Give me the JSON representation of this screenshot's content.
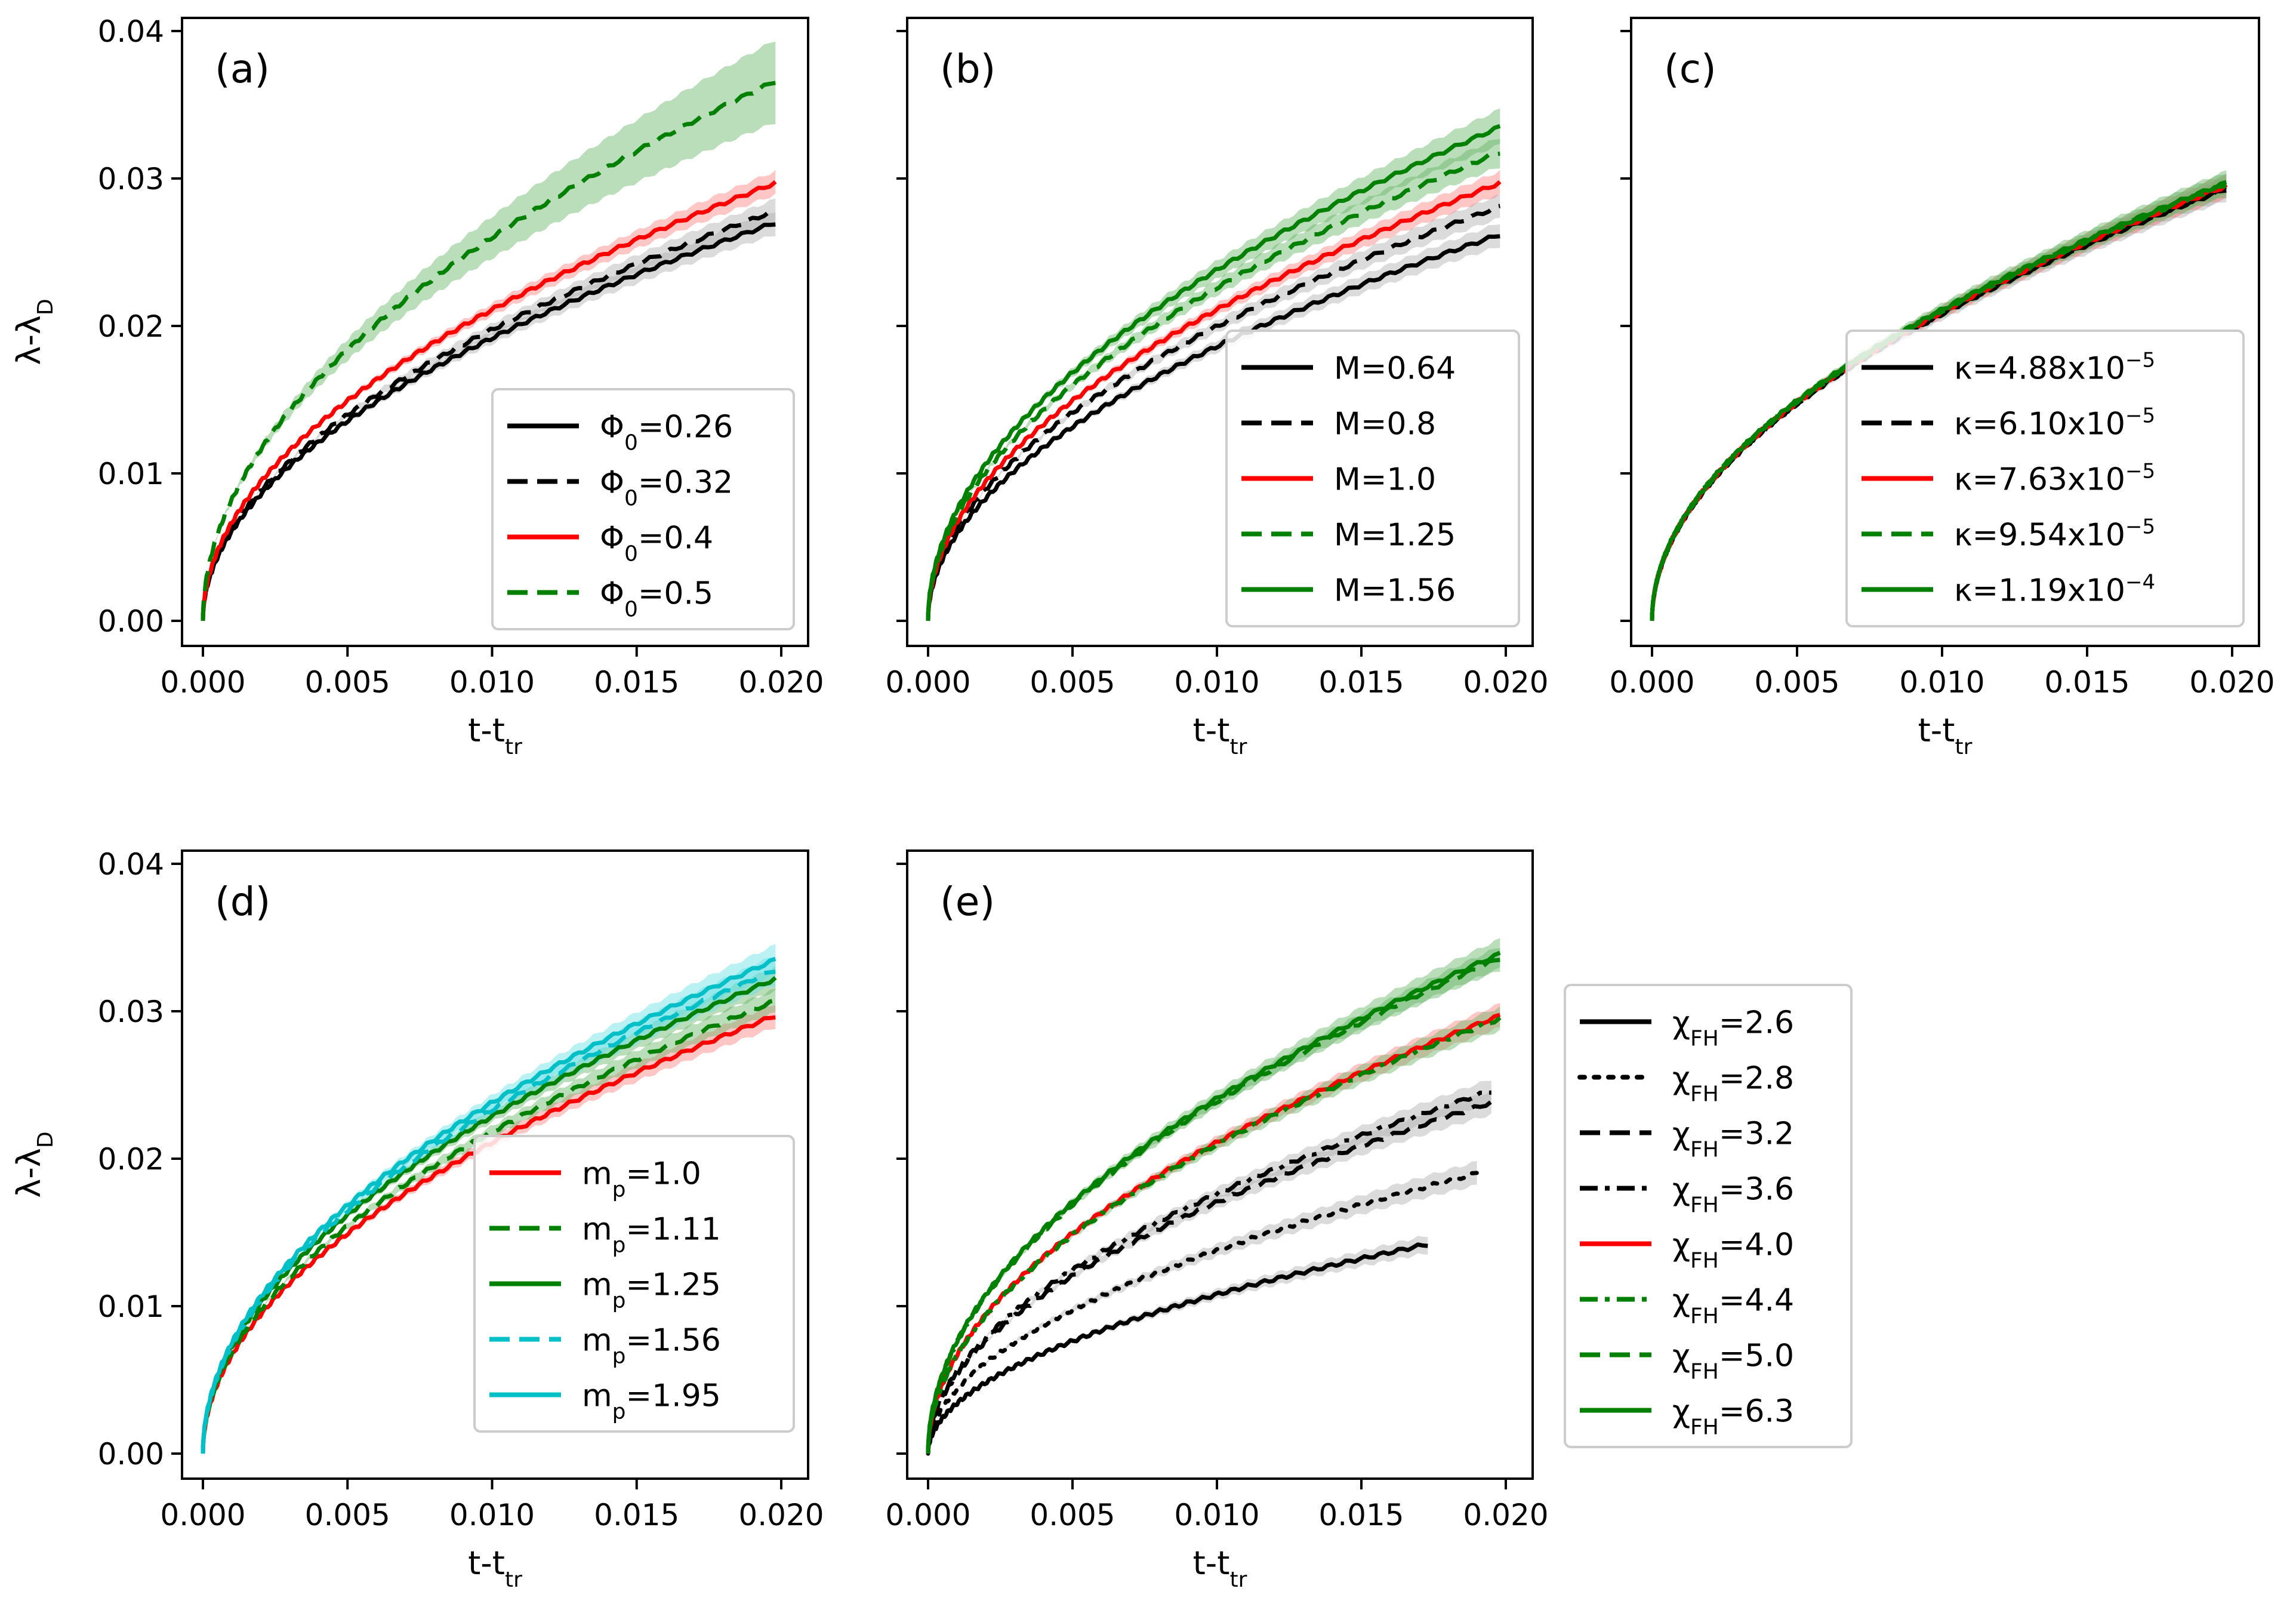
{
  "colors": {
    "black": "#000000",
    "red": "#ff0000",
    "green": "#008000",
    "cyan": "#00bfc6",
    "band_black": "#b0b0b0",
    "band_red": "#ff8080",
    "band_green": "#66b366",
    "band_cyan": "#66e0e4"
  },
  "chart_data": [
    {
      "type": "line",
      "panel": "(a)",
      "xlabel": {
        "main": "t-t",
        "sub": "tr"
      },
      "ylabel": {
        "main": "λ-λ",
        "sub": "D"
      },
      "xlim": [
        0,
        0.02
      ],
      "ylim": [
        0,
        0.04
      ],
      "xticks": [
        "0.000",
        "0.005",
        "0.010",
        "0.015",
        "0.020"
      ],
      "yticks": [
        "0.00",
        "0.01",
        "0.02",
        "0.03",
        "0.04"
      ],
      "legend_position": "lower-right",
      "series": [
        {
          "legend": {
            "main": "Φ",
            "sub": "0",
            "tail": "=0.26"
          },
          "color": "black",
          "style": "solid",
          "x_end": 0.0198,
          "final": 0.027,
          "k": 0.006,
          "band": 0.0008
        },
        {
          "legend": {
            "main": "Φ",
            "sub": "0",
            "tail": "=0.32"
          },
          "color": "black",
          "style": "dashed",
          "x_end": 0.0198,
          "final": 0.0278,
          "k": 0.0045,
          "band": 0.0008
        },
        {
          "legend": {
            "main": "Φ",
            "sub": "0",
            "tail": "=0.4"
          },
          "color": "red",
          "style": "solid",
          "x_end": 0.0198,
          "final": 0.0297,
          "k": 0.0032,
          "band": 0.0008
        },
        {
          "legend": {
            "main": "Φ",
            "sub": "0",
            "tail": "=0.5"
          },
          "color": "green",
          "style": "dashed",
          "x_end": 0.0198,
          "final": 0.0366,
          "k": 0.0032,
          "band": 0.0028
        }
      ]
    },
    {
      "type": "line",
      "panel": "(b)",
      "xlabel": {
        "main": "t-t",
        "sub": "tr"
      },
      "xlim": [
        0,
        0.02
      ],
      "ylim": [
        0,
        0.04
      ],
      "xticks": [
        "0.000",
        "0.005",
        "0.010",
        "0.015",
        "0.020"
      ],
      "legend_position": "lower-right",
      "series": [
        {
          "legend": {
            "main": "M=0.64"
          },
          "color": "black",
          "style": "solid",
          "x_end": 0.0198,
          "final": 0.0262,
          "k": 0.0035,
          "band": 0.0008
        },
        {
          "legend": {
            "main": "M=0.8"
          },
          "color": "black",
          "style": "dashed",
          "x_end": 0.0198,
          "final": 0.0281,
          "k": 0.0035,
          "band": 0.0008
        },
        {
          "legend": {
            "main": "M=1.0"
          },
          "color": "red",
          "style": "solid",
          "x_end": 0.0198,
          "final": 0.0297,
          "k": 0.0032,
          "band": 0.0008
        },
        {
          "legend": {
            "main": "M=1.25"
          },
          "color": "green",
          "style": "dashed",
          "x_end": 0.0198,
          "final": 0.0318,
          "k": 0.003,
          "band": 0.001
        },
        {
          "legend": {
            "main": "M=1.56"
          },
          "color": "green",
          "style": "solid",
          "x_end": 0.0198,
          "final": 0.0335,
          "k": 0.0028,
          "band": 0.0012
        }
      ]
    },
    {
      "type": "line",
      "panel": "(c)",
      "xlabel": {
        "main": "t-t",
        "sub": "tr"
      },
      "xlim": [
        0,
        0.02
      ],
      "ylim": [
        0,
        0.04
      ],
      "xticks": [
        "0.000",
        "0.005",
        "0.010",
        "0.015",
        "0.020"
      ],
      "legend_position": "lower-right",
      "series": [
        {
          "legend": {
            "main": "κ=4.88x10",
            "sup": "−5"
          },
          "color": "black",
          "style": "solid",
          "x_end": 0.0198,
          "final": 0.0293,
          "k": 0.003,
          "band": 0.0008
        },
        {
          "legend": {
            "main": "κ=6.10x10",
            "sup": "−5"
          },
          "color": "black",
          "style": "dashed",
          "x_end": 0.0198,
          "final": 0.0294,
          "k": 0.003,
          "band": 0.0008
        },
        {
          "legend": {
            "main": "κ=7.63x10",
            "sup": "−5"
          },
          "color": "red",
          "style": "solid",
          "x_end": 0.0198,
          "final": 0.0295,
          "k": 0.003,
          "band": 0.0008
        },
        {
          "legend": {
            "main": "κ=9.54x10",
            "sup": "−5"
          },
          "color": "green",
          "style": "dashed",
          "x_end": 0.0198,
          "final": 0.0296,
          "k": 0.003,
          "band": 0.0008
        },
        {
          "legend": {
            "main": "κ=1.19x10",
            "sup": "−4"
          },
          "color": "green",
          "style": "solid",
          "x_end": 0.0198,
          "final": 0.0297,
          "k": 0.003,
          "band": 0.0008
        }
      ]
    },
    {
      "type": "line",
      "panel": "(d)",
      "xlabel": {
        "main": "t-t",
        "sub": "tr"
      },
      "ylabel": {
        "main": "λ-λ",
        "sub": "D"
      },
      "xlim": [
        0,
        0.02
      ],
      "ylim": [
        0,
        0.04
      ],
      "xticks": [
        "0.000",
        "0.005",
        "0.010",
        "0.015",
        "0.020"
      ],
      "yticks": [
        "0.00",
        "0.01",
        "0.02",
        "0.03",
        "0.04"
      ],
      "legend_position": "lower-right",
      "series": [
        {
          "legend": {
            "main": "m",
            "sub": "p",
            "tail": "=1.0"
          },
          "color": "red",
          "style": "solid",
          "x_end": 0.0198,
          "final": 0.0297,
          "k": 0.0032,
          "band": 0.0008
        },
        {
          "legend": {
            "main": "m",
            "sub": "p",
            "tail": "=1.11"
          },
          "color": "green",
          "style": "dashed",
          "x_end": 0.0198,
          "final": 0.0307,
          "k": 0.0032,
          "band": 0.0008
        },
        {
          "legend": {
            "main": "m",
            "sub": "p",
            "tail": "=1.25"
          },
          "color": "green",
          "style": "solid",
          "x_end": 0.0198,
          "final": 0.0322,
          "k": 0.0035,
          "band": 0.0008
        },
        {
          "legend": {
            "main": "m",
            "sub": "p",
            "tail": "=1.56"
          },
          "color": "cyan",
          "style": "dashed",
          "x_end": 0.0198,
          "final": 0.0328,
          "k": 0.003,
          "band": 0.001
        },
        {
          "legend": {
            "main": "m",
            "sub": "p",
            "tail": "=1.95"
          },
          "color": "cyan",
          "style": "solid",
          "x_end": 0.0198,
          "final": 0.0335,
          "k": 0.0028,
          "band": 0.001
        }
      ]
    },
    {
      "type": "line",
      "panel": "(e)",
      "xlabel": {
        "main": "t-t",
        "sub": "tr"
      },
      "xlim": [
        0,
        0.02
      ],
      "ylim": [
        0,
        0.04
      ],
      "xticks": [
        "0.000",
        "0.005",
        "0.010",
        "0.015",
        "0.020"
      ],
      "legend_position": "outside-right",
      "series": [
        {
          "legend": {
            "main": "χ",
            "sub": "FH",
            "tail": "=2.6"
          },
          "color": "black",
          "style": "solid",
          "x_end": 0.0173,
          "final": 0.0142,
          "k": 0.012,
          "band": 0.0006
        },
        {
          "legend": {
            "main": "χ",
            "sub": "FH",
            "tail": "=2.8"
          },
          "color": "black",
          "style": "dotted",
          "x_end": 0.019,
          "final": 0.019,
          "k": 0.005,
          "band": 0.0008
        },
        {
          "legend": {
            "main": "χ",
            "sub": "FH",
            "tail": "=3.2"
          },
          "color": "black",
          "style": "dashed",
          "x_end": 0.0195,
          "final": 0.0238,
          "k": 0.0035,
          "band": 0.0008
        },
        {
          "legend": {
            "main": "χ",
            "sub": "FH",
            "tail": "=3.6"
          },
          "color": "black",
          "style": "dashdot",
          "x_end": 0.0195,
          "final": 0.0246,
          "k": 0.0032,
          "band": 0.0008
        },
        {
          "legend": {
            "main": "χ",
            "sub": "FH",
            "tail": "=4.0"
          },
          "color": "red",
          "style": "solid",
          "x_end": 0.0198,
          "final": 0.0297,
          "k": 0.0032,
          "band": 0.0008
        },
        {
          "legend": {
            "main": "χ",
            "sub": "FH",
            "tail": "=4.4"
          },
          "color": "green",
          "style": "dashdot",
          "x_end": 0.0198,
          "final": 0.0295,
          "k": 0.0032,
          "band": 0.0008
        },
        {
          "legend": {
            "main": "χ",
            "sub": "FH",
            "tail": "=5.0"
          },
          "color": "green",
          "style": "dashed",
          "x_end": 0.0198,
          "final": 0.0336,
          "k": 0.0028,
          "band": 0.0008
        },
        {
          "legend": {
            "main": "χ",
            "sub": "FH",
            "tail": "=6.3"
          },
          "color": "green",
          "style": "solid",
          "x_end": 0.0198,
          "final": 0.0339,
          "k": 0.0027,
          "band": 0.001
        }
      ]
    }
  ]
}
